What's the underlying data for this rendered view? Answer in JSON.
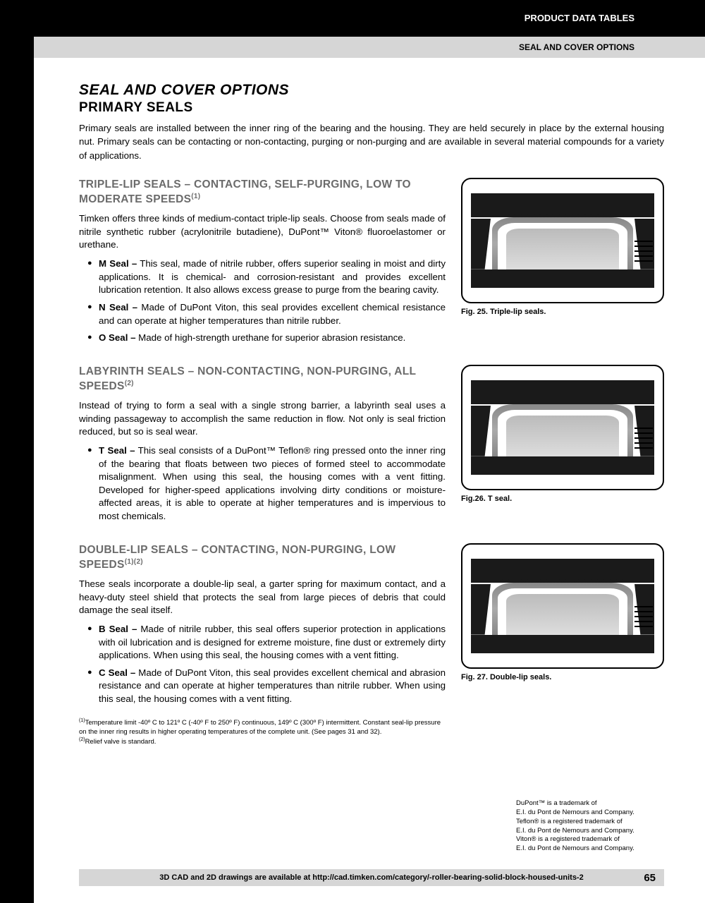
{
  "header": {
    "black_bar": "PRODUCT DATA TABLES",
    "grey_bar": "SEAL AND COVER OPTIONS"
  },
  "title_main": "SEAL AND COVER OPTIONS",
  "title_sub": "PRIMARY SEALS",
  "intro": "Primary seals are installed between the inner ring of the bearing and the housing. They are held securely in place by the external housing nut. Primary seals can be contacting or non-contacting, purging or non-purging and are available in several material compounds for a variety of applications.",
  "sections": [
    {
      "heading": "TRIPLE-LIP SEALS – CONTACTING, SELF-PURGING, LOW TO MODERATE SPEEDS",
      "sup": "(1)",
      "text": "Timken offers three kinds of medium-contact triple-lip seals. Choose from seals made of nitrile synthetic rubber (acrylonitrile butadiene), DuPont™ Viton® fluoroelastomer or urethane.",
      "bullets": [
        {
          "label": "M Seal –",
          "body": " This seal, made of nitrile rubber, offers superior sealing in moist and dirty applications. It is chemical- and corrosion-resistant and provides excellent lubrication retention. It also allows excess grease to purge from the bearing cavity."
        },
        {
          "label": "N Seal –",
          "body": " Made of DuPont Viton, this seal provides excellent chemical resistance and can operate at higher temperatures than nitrile rubber."
        },
        {
          "label": "O Seal –",
          "body": " Made of high-strength urethane for superior abrasion resistance."
        }
      ],
      "caption": "Fig. 25. Triple-lip seals."
    },
    {
      "heading": "LABYRINTH SEALS – NON-CONTACTING, NON-PURGING, ALL SPEEDS",
      "sup": "(2)",
      "text": "Instead of trying to form a seal with a single strong barrier, a labyrinth seal uses a winding passageway to accomplish the same reduction in flow. Not only is seal friction reduced, but so is seal wear.",
      "bullets": [
        {
          "label": "T Seal –",
          "body": " This seal consists of a DuPont™ Teflon® ring pressed onto the inner ring of the bearing that floats between two pieces of formed steel to accommodate misalignment. When using this seal, the housing comes with a vent fitting. Developed for higher-speed applications involving dirty conditions or moisture-affected areas, it is able to operate at higher temperatures and is impervious to most chemicals."
        }
      ],
      "caption": "Fig.26. T seal."
    },
    {
      "heading": "DOUBLE-LIP SEALS – CONTACTING, NON-PURGING, LOW SPEEDS",
      "sup": "(1)(2)",
      "text": "These seals incorporate a double-lip seal, a garter spring for maximum contact, and a heavy-duty steel shield that protects the seal from large pieces of debris that could damage the seal itself.",
      "bullets": [
        {
          "label": "B Seal –",
          "body": " Made of nitrile rubber, this seal offers superior protection in applications with oil lubrication and is designed for extreme moisture, fine dust or extremely dirty applications. When using this seal, the housing comes with a vent fitting."
        },
        {
          "label": "C Seal –",
          "body": " Made of DuPont Viton, this seal provides excellent chemical and abrasion resistance and can operate at higher temperatures than nitrile rubber. When using this seal, the housing comes with a vent fitting."
        }
      ],
      "caption": "Fig. 27. Double-lip seals."
    }
  ],
  "footnotes": {
    "f1": "Temperature limit -40º C to 121º C (-40º F to 250º F) continuous, 149º C (300º F) intermittent. Constant seal-lip pressure on the inner ring results in higher operating temperatures of the complete unit. (See pages 31 and 32).",
    "f2": "Relief valve is standard."
  },
  "trademark": "DuPont™ is a trademark of\nE.I. du Pont de Nemours and Company.\nTeflon® is a registered trademark of\nE.I. du Pont de Nemours and Company.\nViton® is a registered trademark of\nE.I. du Pont de Nemours and Company.",
  "footer": {
    "text": "3D CAD and 2D drawings are available at http://cad.timken.com/category/-roller-bearing-solid-block-housed-units-2",
    "page": "65"
  },
  "colors": {
    "heading_grey": "#6b6b6b",
    "bar_grey": "#d6d6d6",
    "black": "#000000"
  }
}
